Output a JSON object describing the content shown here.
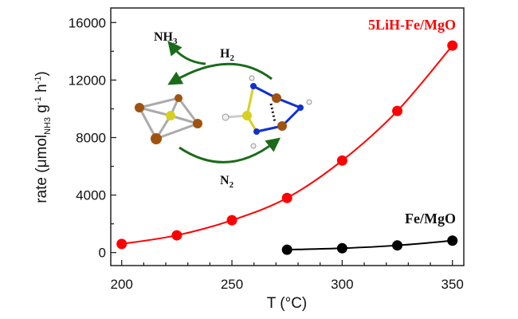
{
  "chart_data": {
    "type": "line",
    "title": "",
    "xlabel": "T (°C)",
    "ylabel": {
      "main": "rate (μmol",
      "sub": "NH3",
      "rest1": " g",
      "sup1": "-1",
      "rest2": " h",
      "sup2": "-1",
      "close": ")"
    },
    "xlim": [
      197,
      355
    ],
    "ylim": [
      -1000,
      17000
    ],
    "xticks": [
      200,
      250,
      300,
      350
    ],
    "xtick_labels": [
      "200",
      "250",
      "300",
      "350"
    ],
    "yticks": [
      0,
      4000,
      8000,
      12000,
      16000
    ],
    "ytick_labels": [
      "0",
      "4000",
      "8000",
      "12000",
      "16000"
    ],
    "grid": false,
    "series": [
      {
        "name": "5LiH-Fe/MgO",
        "color": "#ff0000",
        "x": [
          200,
          225,
          250,
          275,
          300,
          325,
          350
        ],
        "values": [
          600,
          1200,
          2250,
          3800,
          6400,
          9850,
          14400
        ]
      },
      {
        "name": "Fe/MgO",
        "color": "#000000",
        "x": [
          275,
          300,
          325,
          350
        ],
        "values": [
          200,
          300,
          500,
          830
        ]
      }
    ],
    "annotations": {
      "nh3": {
        "base": "NH",
        "sub": "3"
      },
      "h2": {
        "base": "H",
        "sub": "2"
      },
      "n2": {
        "base": "N",
        "sub": "2"
      }
    }
  }
}
